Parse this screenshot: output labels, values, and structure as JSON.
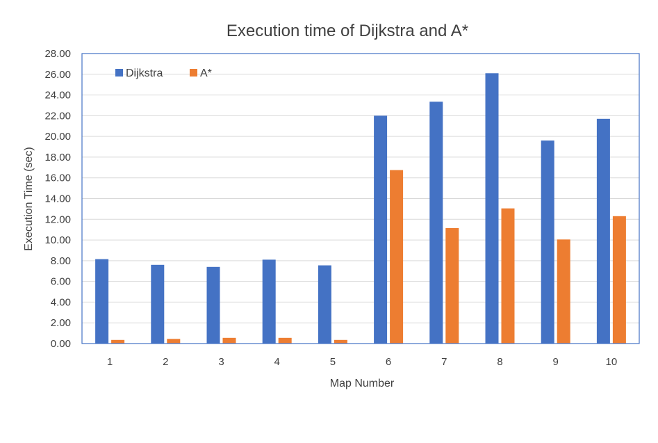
{
  "chart_data": {
    "type": "bar",
    "title": "Execution time of Dijkstra and A*",
    "xlabel": "Map Number",
    "ylabel": "Execution Time (sec)",
    "categories": [
      "1",
      "2",
      "3",
      "4",
      "5",
      "6",
      "7",
      "8",
      "9",
      "10"
    ],
    "series": [
      {
        "name": "Dijkstra",
        "color": "#4472C4",
        "values": [
          8.15,
          7.6,
          7.4,
          8.1,
          7.55,
          22.0,
          23.35,
          26.1,
          19.6,
          21.7
        ]
      },
      {
        "name": "A*",
        "color": "#ED7D31",
        "values": [
          0.35,
          0.45,
          0.55,
          0.55,
          0.35,
          16.75,
          11.15,
          13.05,
          10.05,
          12.3
        ]
      }
    ],
    "ylim": [
      0,
      28
    ],
    "ytick_step": 2,
    "ytick_labels": [
      "0.00",
      "2.00",
      "4.00",
      "6.00",
      "8.00",
      "10.00",
      "12.00",
      "14.00",
      "16.00",
      "18.00",
      "20.00",
      "22.00",
      "24.00",
      "26.00",
      "28.00"
    ],
    "grid": true,
    "legend_position": "top-left"
  }
}
